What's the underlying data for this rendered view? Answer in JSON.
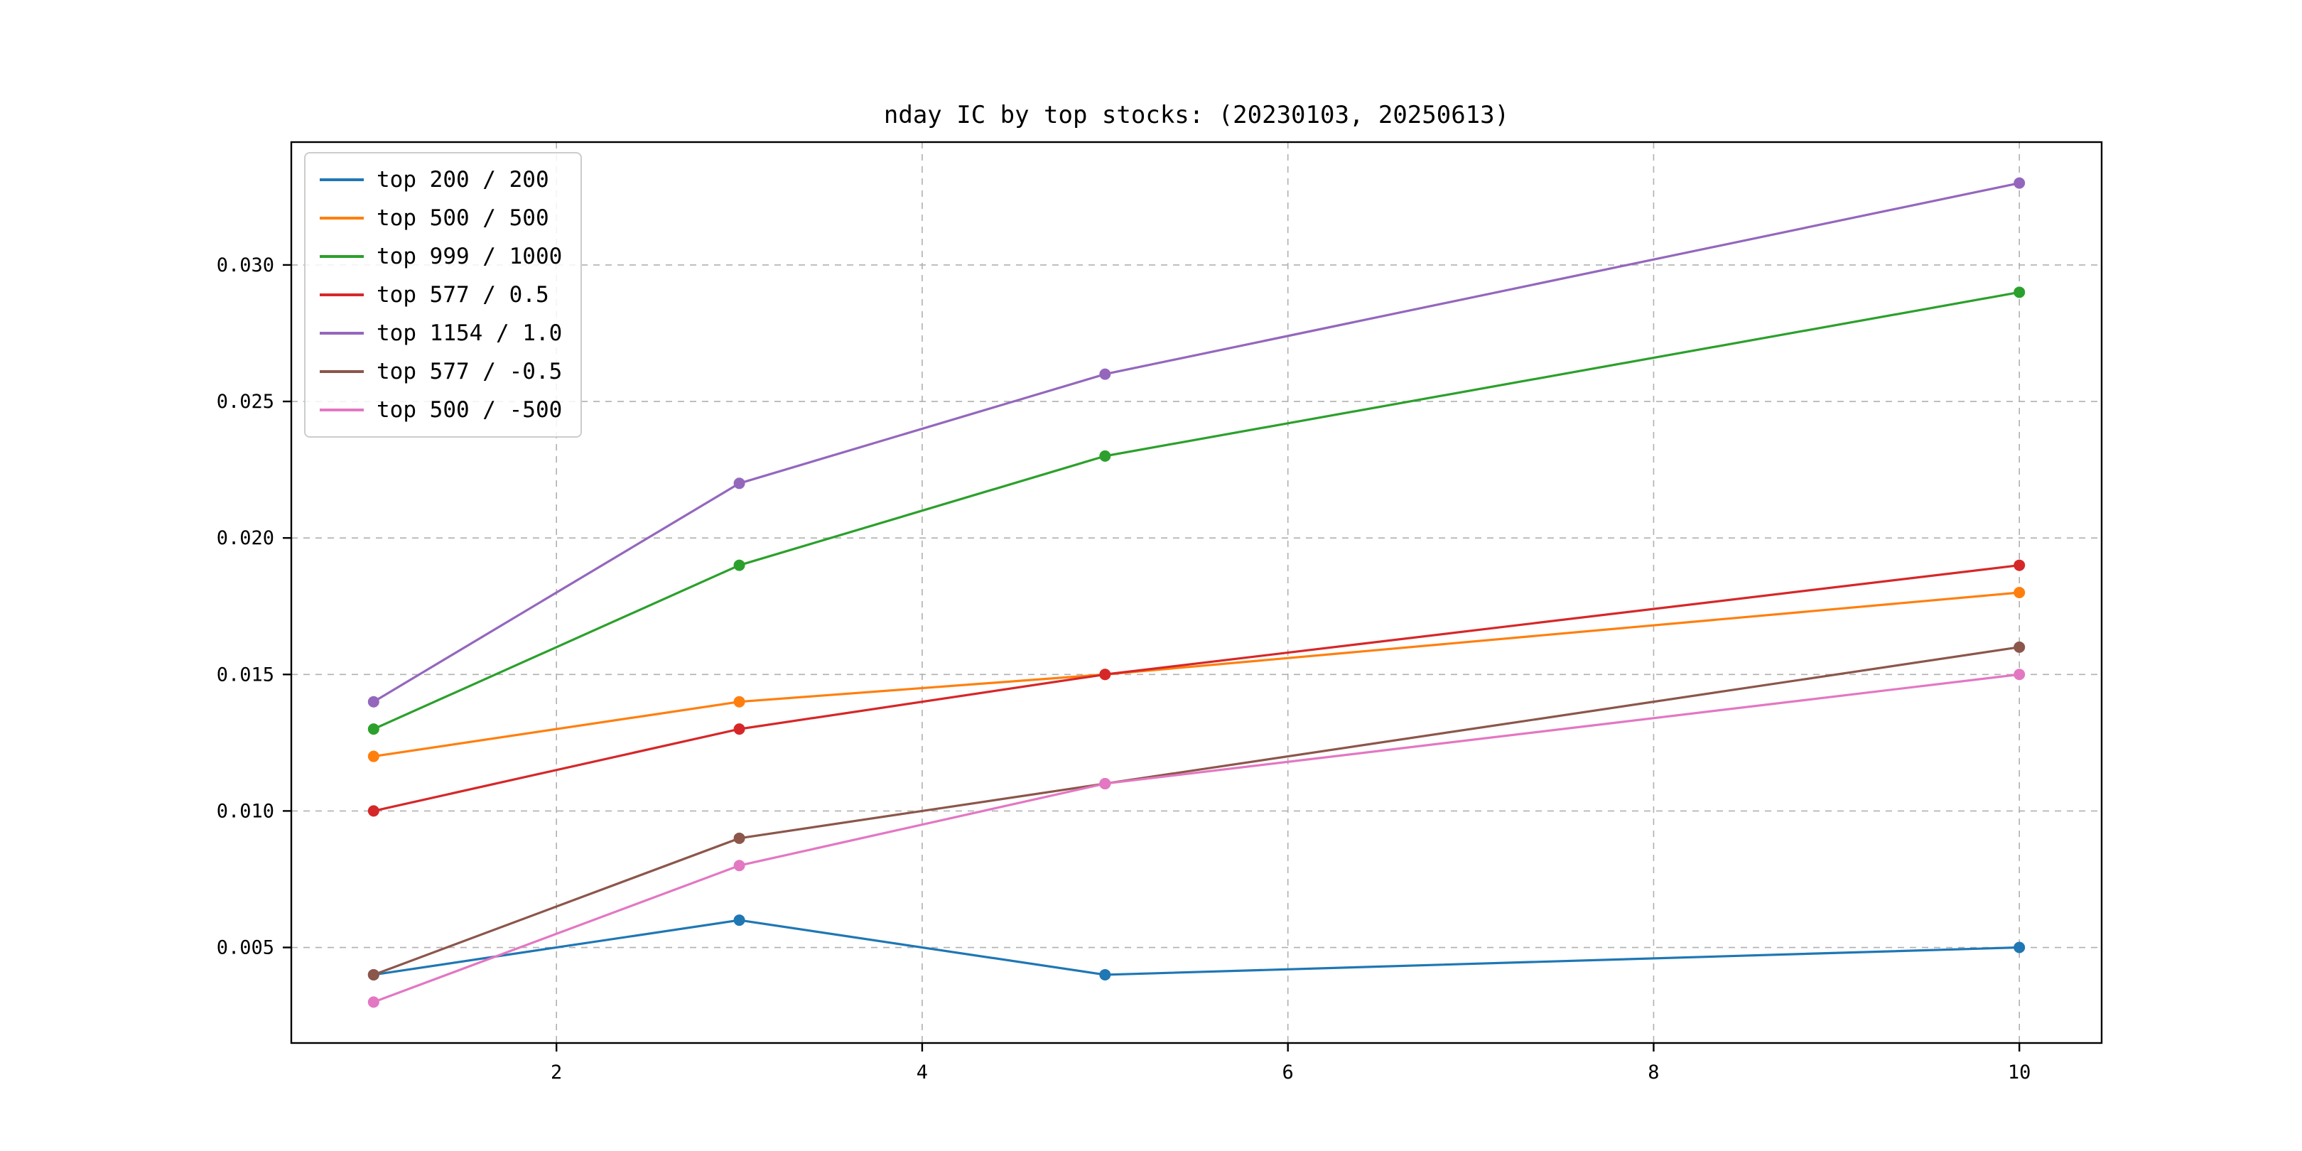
{
  "chart_data": {
    "type": "line",
    "title": "nday IC by top stocks: (20230103, 20250613)",
    "x": [
      1,
      3,
      5,
      10
    ],
    "xticks": [
      2,
      4,
      6,
      8,
      10
    ],
    "yticks": [
      0.005,
      0.01,
      0.015,
      0.02,
      0.025,
      0.03
    ],
    "xlim": [
      0.55,
      10.45
    ],
    "ylim": [
      0.0015,
      0.0345
    ],
    "grid": true,
    "grid_style": "dashed",
    "legend_position": "upper-left",
    "marker": "circle",
    "series": [
      {
        "name": "top 200 / 200",
        "color": "#1f77b4",
        "values": [
          0.004,
          0.006,
          0.004,
          0.005
        ]
      },
      {
        "name": "top 500 / 500",
        "color": "#ff7f0e",
        "values": [
          0.012,
          0.014,
          0.015,
          0.018
        ]
      },
      {
        "name": "top 999 / 1000",
        "color": "#2ca02c",
        "values": [
          0.013,
          0.019,
          0.023,
          0.029
        ]
      },
      {
        "name": "top 577 / 0.5",
        "color": "#d62728",
        "values": [
          0.01,
          0.013,
          0.015,
          0.019
        ]
      },
      {
        "name": "top 1154 / 1.0",
        "color": "#9467bd",
        "values": [
          0.014,
          0.022,
          0.026,
          0.033
        ]
      },
      {
        "name": "top 577 / -0.5",
        "color": "#8c564b",
        "values": [
          0.004,
          0.009,
          0.011,
          0.016
        ]
      },
      {
        "name": "top 500 / -500",
        "color": "#e377c2",
        "values": [
          0.003,
          0.008,
          0.011,
          0.015
        ]
      }
    ],
    "colors": {
      "grid": "#b0b0b0",
      "axis": "#000000",
      "background": "#ffffff",
      "legend_border": "#cccccc"
    }
  }
}
